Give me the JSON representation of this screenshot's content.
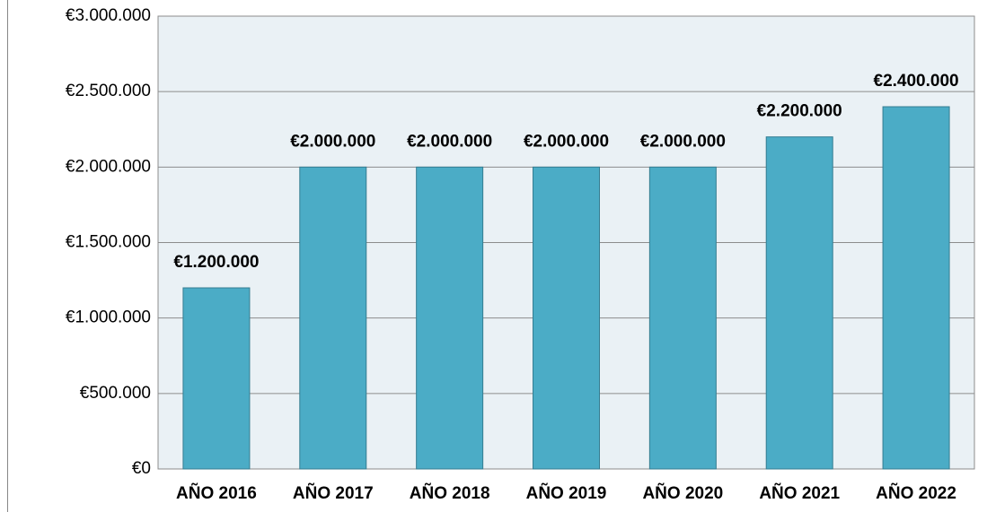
{
  "chart_data": {
    "type": "bar",
    "categories": [
      "AÑO 2016",
      "AÑO 2017",
      "AÑO 2018",
      "AÑO 2019",
      "AÑO 2020",
      "AÑO 2021",
      "AÑO 2022"
    ],
    "values": [
      1200000,
      2000000,
      2000000,
      2000000,
      2000000,
      2200000,
      2400000
    ],
    "value_labels": [
      "€1.200.000",
      "€2.000.000",
      "€2.000.000",
      "€2.000.000",
      "€2.000.000",
      "€2.200.000",
      "€2.400.000"
    ],
    "color": "#4bacc6",
    "ylim": [
      0,
      3000000
    ],
    "yticks": [
      {
        "value": 0,
        "label": "€0"
      },
      {
        "value": 500000,
        "label": "€500.000"
      },
      {
        "value": 1000000,
        "label": "€1.000.000"
      },
      {
        "value": 1500000,
        "label": "€1.500.000"
      },
      {
        "value": 2000000,
        "label": "€2.000.000"
      },
      {
        "value": 2500000,
        "label": "€2.500.000"
      },
      {
        "value": 3000000,
        "label": "€3.000.000"
      }
    ],
    "grid": true
  }
}
